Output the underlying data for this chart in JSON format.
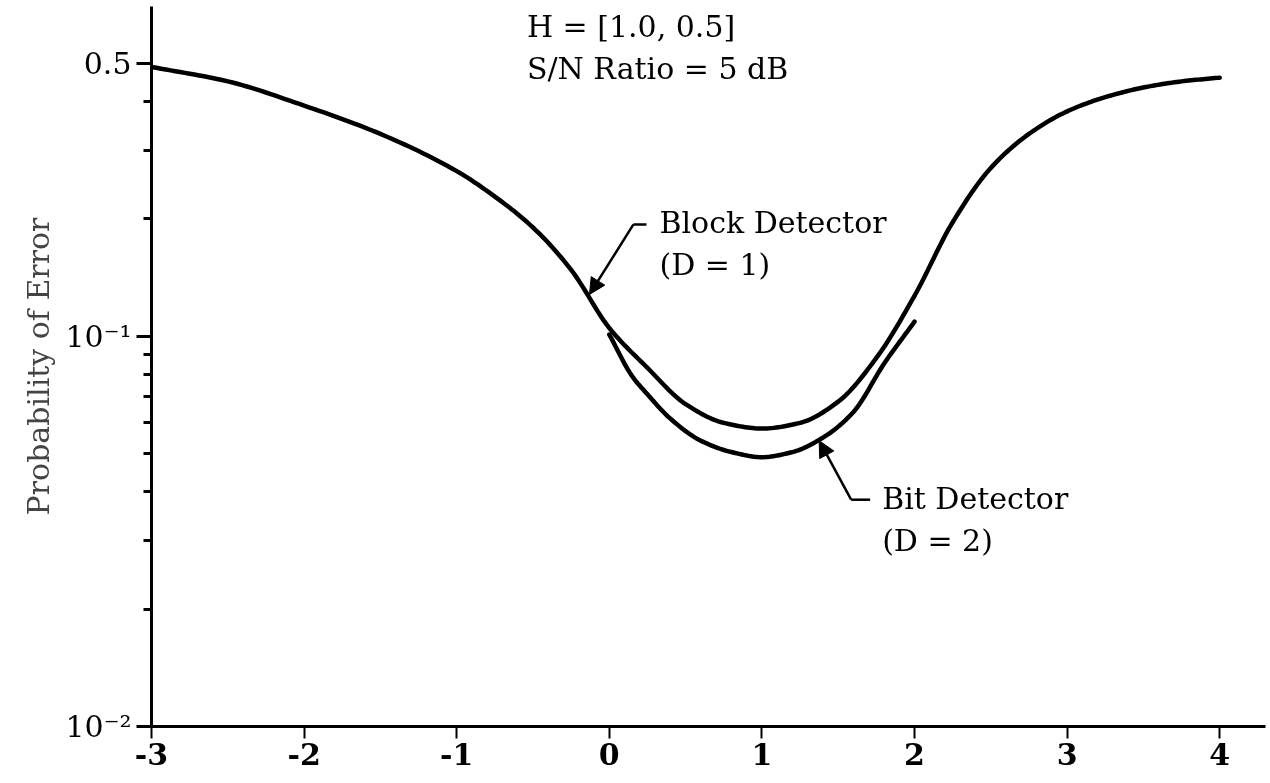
{
  "chart_data": {
    "type": "line",
    "title": "H = [1.0, 0.5]",
    "subtitle": "S/N Ratio = 5 dB",
    "ylabel": "Probability of Error",
    "log": "y",
    "grid": false,
    "line_style": "solid",
    "xlim": [
      -3,
      4.3
    ],
    "xticks": [
      -3,
      -2,
      -1,
      0,
      1,
      2,
      3,
      4
    ],
    "ylim": [
      0.01,
      0.7
    ],
    "yticks": [
      {
        "value": 0.01,
        "label": "10⁻²"
      },
      {
        "value": 0.02,
        "label": null
      },
      {
        "value": 0.03,
        "label": null
      },
      {
        "value": 0.04,
        "label": null
      },
      {
        "value": 0.05,
        "label": null
      },
      {
        "value": 0.06,
        "label": null
      },
      {
        "value": 0.07,
        "label": null
      },
      {
        "value": 0.08,
        "label": null
      },
      {
        "value": 0.09,
        "label": null
      },
      {
        "value": 0.1,
        "label": "10⁻¹"
      },
      {
        "value": 0.2,
        "label": null
      },
      {
        "value": 0.3,
        "label": null
      },
      {
        "value": 0.4,
        "label": null
      },
      0.5
    ],
    "series": [
      {
        "color": "#000000",
        "x": [
          -3.0,
          -2.5,
          -2.0,
          -1.5,
          -1.0,
          -0.75,
          -0.5,
          -0.25,
          0.0,
          0.25,
          0.5,
          0.75,
          1.0,
          1.25,
          1.5,
          1.75,
          2.0,
          2.25,
          2.5,
          2.75,
          3.0,
          3.25,
          3.5,
          3.75,
          4.0
        ],
        "values": [
          0.49,
          0.45,
          0.39,
          0.33,
          0.265,
          0.228,
          0.19,
          0.148,
          0.105,
          0.083,
          0.067,
          0.06,
          0.058,
          0.06,
          0.068,
          0.088,
          0.127,
          0.196,
          0.27,
          0.33,
          0.377,
          0.41,
          0.434,
          0.45,
          0.46
        ]
      },
      {
        "color": "#000000",
        "x": [
          0.0,
          0.15,
          0.25,
          0.4,
          0.6,
          0.8,
          1.0,
          1.2,
          1.4,
          1.6,
          1.8,
          2.0
        ],
        "values": [
          0.101,
          0.079,
          0.071,
          0.0615,
          0.054,
          0.0505,
          0.049,
          0.0505,
          0.055,
          0.064,
          0.085,
          0.109
        ]
      }
    ],
    "annotations": [
      {
        "text": "Block Detector\n(D = 1)",
        "x": -0.13,
        "y": 0.128
      },
      {
        "text": "Bit Detector\n(D = 2)",
        "x": 1.375,
        "y": 0.054
      }
    ]
  }
}
